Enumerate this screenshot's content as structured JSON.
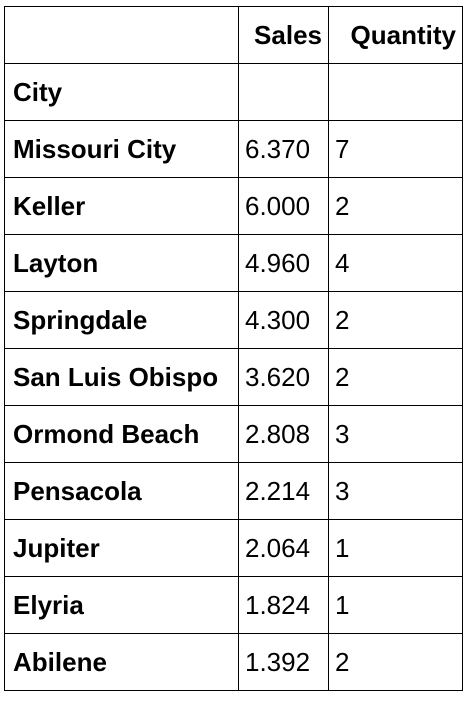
{
  "table": {
    "columns": [
      "",
      "Sales",
      "Quantity"
    ],
    "index_label": "City",
    "rows": [
      {
        "city": "Missouri City",
        "sales": "6.370",
        "quantity": "7"
      },
      {
        "city": "Keller",
        "sales": "6.000",
        "quantity": "2"
      },
      {
        "city": "Layton",
        "sales": "4.960",
        "quantity": "4"
      },
      {
        "city": "Springdale",
        "sales": "4.300",
        "quantity": "2"
      },
      {
        "city": "San Luis Obispo",
        "sales": "3.620",
        "quantity": "2"
      },
      {
        "city": "Ormond Beach",
        "sales": "2.808",
        "quantity": "3"
      },
      {
        "city": "Pensacola",
        "sales": "2.214",
        "quantity": "3"
      },
      {
        "city": "Jupiter",
        "sales": "2.064",
        "quantity": "1"
      },
      {
        "city": "Elyria",
        "sales": "1.824",
        "quantity": "1"
      },
      {
        "city": "Abilene",
        "sales": "1.392",
        "quantity": "2"
      }
    ]
  }
}
